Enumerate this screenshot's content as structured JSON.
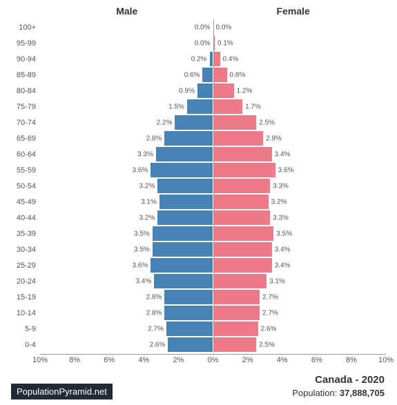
{
  "chart": {
    "type": "population-pyramid",
    "male_label": "Male",
    "female_label": "Female",
    "male_color": "#4682b4",
    "female_color": "#ee7989",
    "background_color": "#ffffff",
    "centerline_color": "#999999",
    "text_color": "#555555",
    "x_max_pct": 10,
    "x_ticks": [
      "10%",
      "8%",
      "6%",
      "4%",
      "2%",
      "0%",
      "2%",
      "4%",
      "6%",
      "8%",
      "10%"
    ],
    "age_groups": [
      "100+",
      "95-99",
      "90-94",
      "85-89",
      "80-84",
      "75-79",
      "70-74",
      "65-69",
      "60-64",
      "55-59",
      "50-54",
      "45-49",
      "40-44",
      "35-39",
      "30-34",
      "25-29",
      "20-24",
      "15-19",
      "10-14",
      "5-9",
      "0-4"
    ],
    "male_pct": [
      0.0,
      0.0,
      0.2,
      0.6,
      0.9,
      1.5,
      2.2,
      2.8,
      3.3,
      3.6,
      3.2,
      3.1,
      3.2,
      3.5,
      3.5,
      3.6,
      3.4,
      2.8,
      2.8,
      2.7,
      2.6
    ],
    "female_pct": [
      0.0,
      0.1,
      0.4,
      0.8,
      1.2,
      1.7,
      2.5,
      2.9,
      3.4,
      3.6,
      3.3,
      3.2,
      3.3,
      3.5,
      3.4,
      3.4,
      3.1,
      2.7,
      2.7,
      2.6,
      2.5
    ],
    "label_fontsize": 11,
    "value_fontsize": 10
  },
  "footer": {
    "badge": "PopulationPyramid.net",
    "country_year": "Canada - 2020",
    "population_label": "Population: ",
    "population_value": "37,888,705"
  }
}
